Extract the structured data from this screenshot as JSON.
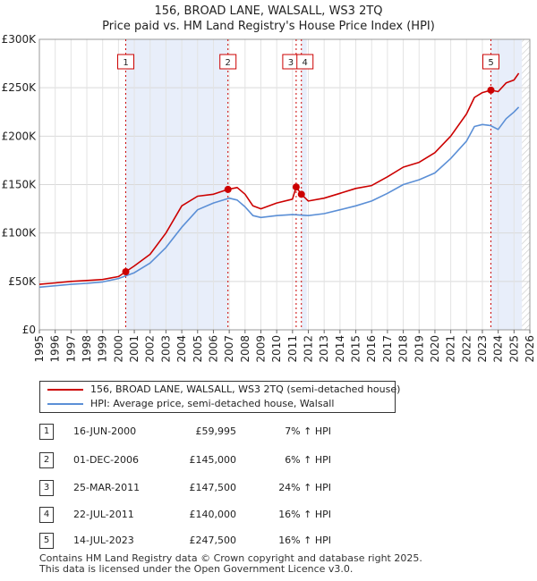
{
  "header": {
    "title": "156, BROAD LANE, WALSALL, WS3 2TQ",
    "subtitle": "Price paid vs. HM Land Registry's House Price Index (HPI)"
  },
  "chart_data": {
    "type": "line",
    "title": "156, BROAD LANE, WALSALL, WS3 2TQ",
    "subtitle": "Price paid vs. HM Land Registry's House Price Index (HPI)",
    "xlabel": "",
    "ylabel": "",
    "xlim": [
      1995,
      2026
    ],
    "ylim": [
      0,
      300000
    ],
    "x_ticks": [
      1995,
      1996,
      1997,
      1998,
      1999,
      2000,
      2001,
      2002,
      2003,
      2004,
      2005,
      2006,
      2007,
      2008,
      2009,
      2010,
      2011,
      2012,
      2013,
      2014,
      2015,
      2016,
      2017,
      2018,
      2019,
      2020,
      2021,
      2022,
      2023,
      2024,
      2025,
      2026
    ],
    "y_ticks": [
      {
        "value": 0,
        "label": "£0"
      },
      {
        "value": 50000,
        "label": "£50K"
      },
      {
        "value": 100000,
        "label": "£100K"
      },
      {
        "value": 150000,
        "label": "£150K"
      },
      {
        "value": 200000,
        "label": "£200K"
      },
      {
        "value": 250000,
        "label": "£250K"
      },
      {
        "value": 300000,
        "label": "£300K"
      }
    ],
    "grid": true,
    "shaded_periods": [
      [
        2000.46,
        2006.92
      ],
      [
        2011.56,
        2011.9
      ],
      [
        2023.54,
        2025.5
      ]
    ],
    "hatched_future_from": 2025.5,
    "series": [
      {
        "name": "156, BROAD LANE, WALSALL, WS3 2TQ (semi-detached house)",
        "color": "#cc0000",
        "x": [
          1995,
          1996,
          1997,
          1998,
          1999,
          2000,
          2000.46,
          2001,
          2002,
          2003,
          2004,
          2005,
          2006,
          2006.92,
          2007.5,
          2008,
          2008.5,
          2009,
          2010,
          2011,
          2011.23,
          2011.56,
          2012,
          2013,
          2014,
          2015,
          2016,
          2017,
          2018,
          2019,
          2020,
          2021,
          2022,
          2022.5,
          2023,
          2023.54,
          2024,
          2024.5,
          2025,
          2025.3
        ],
        "values": [
          47000,
          48500,
          50000,
          51000,
          52000,
          55000,
          59995,
          66000,
          78000,
          100000,
          128000,
          138000,
          140000,
          145000,
          147000,
          140000,
          128000,
          125000,
          131000,
          135000,
          147500,
          140000,
          133000,
          136000,
          141000,
          146000,
          149000,
          158000,
          168000,
          173000,
          183000,
          200000,
          223000,
          240000,
          245000,
          247500,
          246000,
          255000,
          258000,
          265000
        ]
      },
      {
        "name": "HPI: Average price, semi-detached house, Walsall",
        "color": "#5b8fd6",
        "x": [
          1995,
          1996,
          1997,
          1998,
          1999,
          2000,
          2001,
          2002,
          2003,
          2004,
          2005,
          2006,
          2007,
          2007.5,
          2008,
          2008.5,
          2009,
          2010,
          2011,
          2012,
          2013,
          2014,
          2015,
          2016,
          2017,
          2018,
          2019,
          2020,
          2021,
          2022,
          2022.5,
          2023,
          2023.5,
          2024,
          2024.5,
          2025,
          2025.3
        ],
        "values": [
          44000,
          45500,
          47000,
          48000,
          49500,
          53000,
          59000,
          69000,
          85000,
          106000,
          124000,
          131000,
          136000,
          134000,
          127000,
          118000,
          116000,
          118000,
          119000,
          118000,
          120000,
          124000,
          128000,
          133000,
          141000,
          150000,
          155000,
          162000,
          177000,
          195000,
          210000,
          212000,
          211000,
          207000,
          218000,
          225000,
          230000
        ]
      }
    ],
    "markers": [
      {
        "label": "1",
        "x": 2000.46,
        "y": 59995
      },
      {
        "label": "2",
        "x": 2006.92,
        "y": 145000
      },
      {
        "label": "3",
        "x": 2011.23,
        "y": 147500
      },
      {
        "label": "4",
        "x": 2011.56,
        "y": 140000
      },
      {
        "label": "5",
        "x": 2023.54,
        "y": 247500
      }
    ]
  },
  "legend": [
    {
      "label": "156, BROAD LANE, WALSALL, WS3 2TQ (semi-detached house)",
      "color": "#cc0000"
    },
    {
      "label": "HPI: Average price, semi-detached house, Walsall",
      "color": "#5b8fd6"
    }
  ],
  "transactions": [
    {
      "num": "1",
      "date": "16-JUN-2000",
      "price": "£59,995",
      "hpi": "7% ↑ HPI"
    },
    {
      "num": "2",
      "date": "01-DEC-2006",
      "price": "£145,000",
      "hpi": "6% ↑ HPI"
    },
    {
      "num": "3",
      "date": "25-MAR-2011",
      "price": "£147,500",
      "hpi": "24% ↑ HPI"
    },
    {
      "num": "4",
      "date": "22-JUL-2011",
      "price": "£140,000",
      "hpi": "16% ↑ HPI"
    },
    {
      "num": "5",
      "date": "14-JUL-2023",
      "price": "£247,500",
      "hpi": "16% ↑ HPI"
    }
  ],
  "footer": {
    "line1": "Contains HM Land Registry data © Crown copyright and database right 2025.",
    "line2": "This data is licensed under the Open Government Licence v3.0."
  }
}
